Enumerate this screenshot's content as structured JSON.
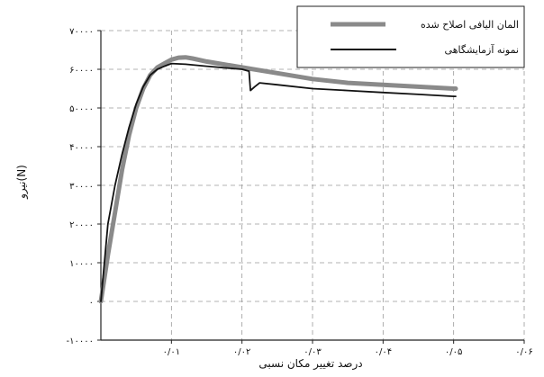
{
  "chart_data": {
    "type": "line",
    "xlabel": "درصد تغییر مکان نسبی",
    "ylabel": "نیرو(N)",
    "xlim": [
      0,
      0.06
    ],
    "ylim": [
      -10000,
      70000
    ],
    "x_ticks": [
      0.01,
      0.02,
      0.03,
      0.04,
      0.05,
      0.06
    ],
    "x_tick_labels": [
      "۰/۰۱",
      "۰/۰۲",
      "۰/۰۳",
      "۰/۰۴",
      "۰/۰۵",
      "۰/۰۶"
    ],
    "y_ticks": [
      -10000,
      0,
      10000,
      20000,
      30000,
      40000,
      50000,
      60000,
      70000
    ],
    "y_tick_labels": [
      "-۱۰۰۰۰",
      "۰",
      "۱۰۰۰۰",
      "۲۰۰۰۰",
      "۳۰۰۰۰",
      "۴۰۰۰۰",
      "۵۰۰۰۰",
      "۶۰۰۰۰",
      "۷۰۰۰۰"
    ],
    "grid": true,
    "legend_position": "top-right",
    "series": [
      {
        "name": "المان الیافی اصلاح شده",
        "color": "#8a8a8a",
        "style": "thick-gray",
        "x": [
          0,
          0.001,
          0.002,
          0.003,
          0.004,
          0.005,
          0.006,
          0.007,
          0.008,
          0.009,
          0.01,
          0.011,
          0.012,
          0.013,
          0.015,
          0.02,
          0.025,
          0.03,
          0.035,
          0.04,
          0.045,
          0.05,
          0.0503
        ],
        "y": [
          0,
          12000,
          23000,
          34000,
          43000,
          50000,
          55000,
          58500,
          60500,
          61500,
          62500,
          63000,
          63100,
          62800,
          62000,
          60500,
          59000,
          57500,
          56500,
          56000,
          55500,
          55000,
          55000
        ]
      },
      {
        "name": "نمونه آزمایشگاهی",
        "color": "#111111",
        "style": "thin-black",
        "x": [
          0,
          0.001,
          0.002,
          0.003,
          0.004,
          0.005,
          0.006,
          0.007,
          0.008,
          0.009,
          0.01,
          0.012,
          0.015,
          0.02,
          0.021,
          0.0212,
          0.0218,
          0.0225,
          0.025,
          0.03,
          0.035,
          0.04,
          0.045,
          0.05,
          0.0503
        ],
        "y": [
          0,
          20000,
          30000,
          38000,
          45000,
          51000,
          55500,
          58500,
          60000,
          60800,
          61500,
          61300,
          60800,
          60000,
          59500,
          54500,
          55500,
          56500,
          56000,
          55000,
          54500,
          54000,
          53500,
          53000,
          53000
        ]
      }
    ]
  }
}
